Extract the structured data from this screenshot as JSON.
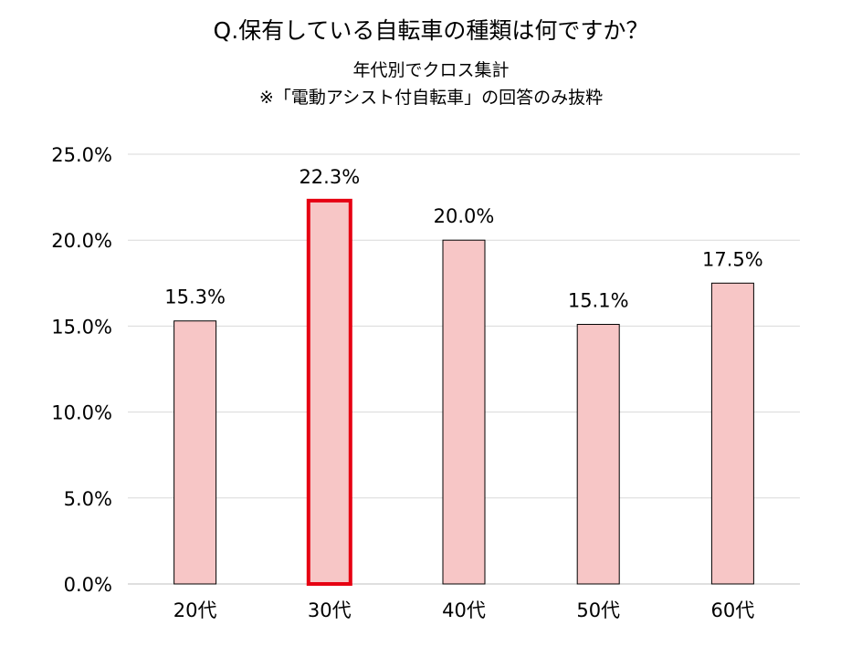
{
  "chart_data": {
    "type": "bar",
    "title": "Q.保有している自転車の種類は何ですか？",
    "subtitle_1": "年代別でクロス集計",
    "subtitle_2": "※「電動アシスト付自転車」の回答のみ抜粋",
    "categories": [
      "20代",
      "30代",
      "40代",
      "50代",
      "60代"
    ],
    "values": [
      15.3,
      22.3,
      20.0,
      15.1,
      17.5
    ],
    "value_labels": [
      "15.3%",
      "22.3%",
      "20.0%",
      "15.1%",
      "17.5%"
    ],
    "ylim": [
      0,
      25
    ],
    "yticks": [
      0,
      5,
      10,
      15,
      20,
      25
    ],
    "ytick_labels": [
      "0.0%",
      "5.0%",
      "10.0%",
      "15.0%",
      "20.0%",
      "25.0%"
    ],
    "highlight_index": 1,
    "grid": true,
    "colors": {
      "bar_fill": "#f7c6c6",
      "bar_stroke": "#000000",
      "highlight_stroke": "#e60012",
      "grid": "#d9d9d9"
    }
  }
}
